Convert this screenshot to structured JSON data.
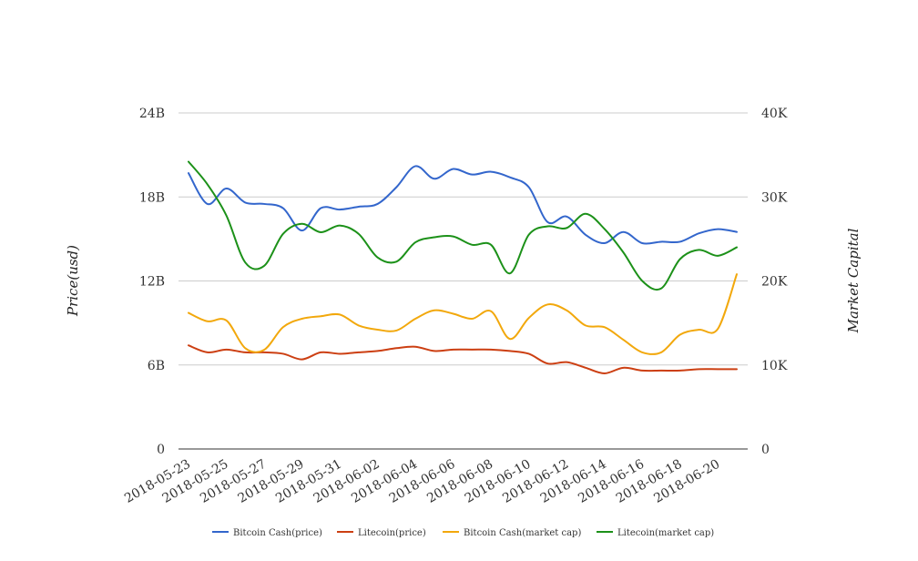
{
  "chart_data": {
    "type": "line",
    "title": "",
    "ylabel": "Price(usd)",
    "y2label": "Market Capital",
    "ylim": [
      0,
      24
    ],
    "y2lim": [
      0,
      40000
    ],
    "yticks": [
      "0",
      "6B",
      "12B",
      "18B",
      "24B"
    ],
    "y2ticks": [
      "0",
      "10K",
      "20K",
      "30K",
      "40K"
    ],
    "grid": true,
    "legend_position": "bottom",
    "x": [
      "2018-05-23",
      "2018-05-24",
      "2018-05-25",
      "2018-05-26",
      "2018-05-27",
      "2018-05-28",
      "2018-05-29",
      "2018-05-30",
      "2018-05-31",
      "2018-06-01",
      "2018-06-02",
      "2018-06-03",
      "2018-06-04",
      "2018-06-05",
      "2018-06-06",
      "2018-06-07",
      "2018-06-08",
      "2018-06-09",
      "2018-06-10",
      "2018-06-11",
      "2018-06-12",
      "2018-06-13",
      "2018-06-14",
      "2018-06-15",
      "2018-06-16",
      "2018-06-17",
      "2018-06-18",
      "2018-06-19",
      "2018-06-20",
      "2018-06-21"
    ],
    "xticks": [
      "2018-05-23",
      "2018-05-25",
      "2018-05-27",
      "2018-05-29",
      "2018-05-31",
      "2018-06-02",
      "2018-06-04",
      "2018-06-06",
      "2018-06-08",
      "2018-06-10",
      "2018-06-12",
      "2018-06-14",
      "2018-06-16",
      "2018-06-18",
      "2018-06-20"
    ],
    "series": [
      {
        "name": "Bitcoin Cash(price)",
        "axis": "left",
        "color": "#3366cc",
        "values": [
          19.7,
          17.5,
          18.6,
          17.6,
          17.5,
          17.2,
          15.6,
          17.2,
          17.1,
          17.3,
          17.5,
          18.7,
          20.2,
          19.3,
          20.0,
          19.6,
          19.8,
          19.4,
          18.7,
          16.2,
          16.6,
          15.3,
          14.7,
          15.5,
          14.7,
          14.8,
          14.8,
          15.4,
          15.7,
          15.5
        ]
      },
      {
        "name": "Litecoin(price)",
        "axis": "left",
        "color": "#cc3f12",
        "values": [
          7.4,
          6.9,
          7.1,
          6.9,
          6.9,
          6.8,
          6.4,
          6.9,
          6.8,
          6.9,
          7.0,
          7.2,
          7.3,
          7.0,
          7.1,
          7.1,
          7.1,
          7.0,
          6.8,
          6.1,
          6.2,
          5.8,
          5.4,
          5.8,
          5.6,
          5.6,
          5.6,
          5.7,
          5.7,
          5.7
        ]
      },
      {
        "name": "Bitcoin Cash(market cap)",
        "axis": "right",
        "color": "#f2a80c",
        "values": [
          16200,
          15200,
          15300,
          12000,
          11800,
          14500,
          15500,
          15800,
          16000,
          14700,
          14200,
          14100,
          15500,
          16500,
          16100,
          15500,
          16400,
          13100,
          15600,
          17200,
          16500,
          14700,
          14500,
          13000,
          11500,
          11500,
          13600,
          14200,
          14300,
          20800
        ]
      },
      {
        "name": "Litecoin(market cap)",
        "axis": "right",
        "color": "#1c9119",
        "values": [
          34200,
          31500,
          27800,
          22200,
          21800,
          25600,
          26800,
          25800,
          26600,
          25600,
          22800,
          22300,
          24600,
          25200,
          25300,
          24300,
          24300,
          20900,
          25500,
          26500,
          26300,
          28000,
          26200,
          23400,
          20000,
          19100,
          22600,
          23700,
          23000,
          24000
        ]
      }
    ]
  }
}
